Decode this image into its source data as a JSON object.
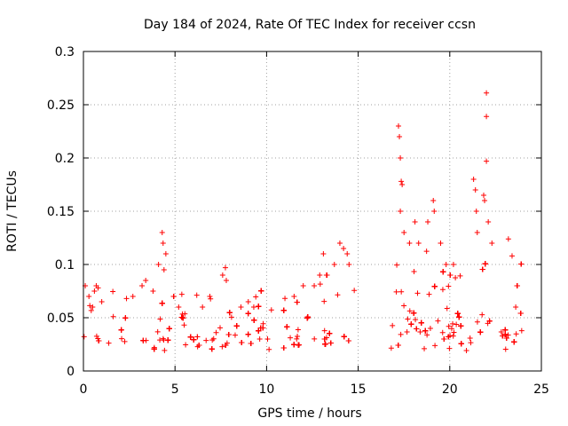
{
  "chart_data": {
    "type": "scatter",
    "title": "Day 184 of 2024, Rate Of TEC Index for receiver ccsn",
    "xlabel": "GPS time / hours",
    "ylabel": "ROTI / TECUs",
    "xlim": [
      0,
      25
    ],
    "ylim": [
      0,
      0.3
    ],
    "xticks": [
      0,
      5,
      10,
      15,
      20,
      25
    ],
    "xtick_labels": [
      "0",
      "5",
      "10",
      "15",
      "20",
      "25"
    ],
    "yticks": [
      0,
      0.05,
      0.1,
      0.15,
      0.2,
      0.25,
      0.3
    ],
    "ytick_labels": [
      "0",
      "0.05",
      "0.1",
      "0.15",
      "0.2",
      "0.25",
      "0.3"
    ],
    "grid": true,
    "marker": "plus",
    "series_color": "#ff0000",
    "data_gap_hours": [
      14.8,
      16.8
    ],
    "series": [
      {
        "name": "ROTI",
        "points": [
          [
            0.1,
            0.08
          ],
          [
            0.3,
            0.07
          ],
          [
            0.5,
            0.06
          ],
          [
            0.6,
            0.075
          ],
          [
            0.7,
            0.08
          ],
          [
            0.8,
            0.078
          ],
          [
            1.0,
            0.065
          ],
          [
            2.7,
            0.07
          ],
          [
            3.2,
            0.08
          ],
          [
            3.4,
            0.085
          ],
          [
            3.8,
            0.075
          ],
          [
            4.1,
            0.1
          ],
          [
            4.3,
            0.13
          ],
          [
            4.35,
            0.12
          ],
          [
            4.4,
            0.095
          ],
          [
            4.5,
            0.11
          ],
          [
            5.2,
            0.06
          ],
          [
            6.5,
            0.06
          ],
          [
            6.9,
            0.07
          ],
          [
            7.6,
            0.09
          ],
          [
            7.75,
            0.097
          ],
          [
            7.8,
            0.085
          ],
          [
            8.6,
            0.06
          ],
          [
            9.0,
            0.065
          ],
          [
            9.3,
            0.06
          ],
          [
            11.5,
            0.07
          ],
          [
            12.0,
            0.08
          ],
          [
            12.6,
            0.08
          ],
          [
            12.9,
            0.09
          ],
          [
            13.1,
            0.11
          ],
          [
            13.3,
            0.09
          ],
          [
            13.7,
            0.1
          ],
          [
            14.0,
            0.12
          ],
          [
            14.2,
            0.115
          ],
          [
            14.4,
            0.11
          ],
          [
            14.5,
            0.1
          ],
          [
            17.2,
            0.23
          ],
          [
            17.25,
            0.22
          ],
          [
            17.3,
            0.2
          ],
          [
            17.35,
            0.178
          ],
          [
            17.4,
            0.175
          ],
          [
            17.3,
            0.15
          ],
          [
            17.5,
            0.13
          ],
          [
            17.8,
            0.12
          ],
          [
            18.1,
            0.14
          ],
          [
            18.3,
            0.12
          ],
          [
            18.8,
            0.14
          ],
          [
            19.1,
            0.16
          ],
          [
            19.15,
            0.15
          ],
          [
            19.5,
            0.12
          ],
          [
            19.8,
            0.1
          ],
          [
            20.2,
            0.1
          ],
          [
            21.3,
            0.18
          ],
          [
            21.4,
            0.17
          ],
          [
            21.45,
            0.15
          ],
          [
            21.5,
            0.13
          ],
          [
            21.85,
            0.165
          ],
          [
            21.9,
            0.16
          ],
          [
            22.0,
            0.261
          ],
          [
            22.0,
            0.239
          ],
          [
            22.0,
            0.197
          ],
          [
            22.1,
            0.14
          ],
          [
            22.3,
            0.12
          ],
          [
            23.2,
            0.124
          ],
          [
            23.4,
            0.108
          ],
          [
            23.6,
            0.06
          ]
        ]
      }
    ]
  }
}
